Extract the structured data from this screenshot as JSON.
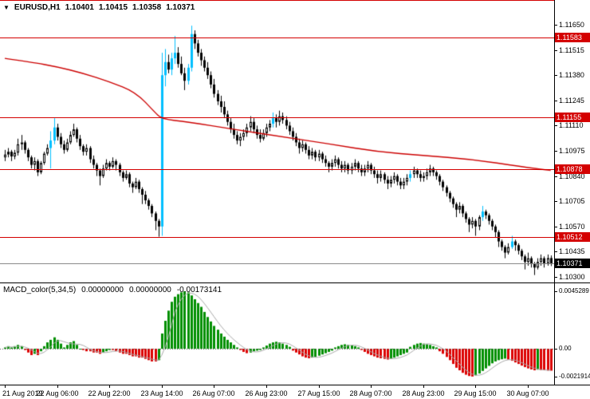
{
  "header": {
    "symbol": "EURUSD,H1",
    "open": "1.10401",
    "high": "1.10415",
    "low": "1.10358",
    "close": "1.10371"
  },
  "indicator_legend": {
    "name": "MACD_color(5,34,5)",
    "v1": "0.00000000",
    "v2": "0.00000000",
    "v3": "-0.00173141"
  },
  "icons": {
    "symbol_dropdown": "▼"
  },
  "colors": {
    "background": "#FFFFFF",
    "level_red": "#D40000",
    "ma_red": "#CC0000",
    "bull_cyan": "#00BFFF",
    "bull_white": "#FFFFFF",
    "bear_black": "#000000",
    "macd_green": "#008F00",
    "macd_red": "#DC0000",
    "signal_gray": "#A8A8A8",
    "current_price_gray": "#8A8A8A",
    "badge_black": "#000000"
  },
  "chart_data": {
    "type": "candlestick",
    "symbol": "EURUSD",
    "timeframe": "H1",
    "price_base": 1.1,
    "price_unit": 0.0001,
    "y_axis": {
      "labels": [
        "1.11650",
        "1.11515",
        "1.11380",
        "1.11245",
        "1.11110",
        "1.10975",
        "1.10840",
        "1.10705",
        "1.10570",
        "1.10435",
        "1.10300"
      ],
      "step": 0.00135
    },
    "horizontal_lines": [
      "1.11583",
      "1.11155",
      "1.10878",
      "1.10512"
    ],
    "current_price": "1.10371",
    "x_axis": {
      "labels": [
        {
          "text": "21 Aug 2019",
          "bar": 0
        },
        {
          "text": "22 Aug 06:00",
          "bar": 16
        },
        {
          "text": "22 Aug 22:00",
          "bar": 32
        },
        {
          "text": "23 Aug 14:00",
          "bar": 48
        },
        {
          "text": "26 Aug 07:00",
          "bar": 64
        },
        {
          "text": "26 Aug 23:00",
          "bar": 80
        },
        {
          "text": "27 Aug 15:00",
          "bar": 96
        },
        {
          "text": "28 Aug 07:00",
          "bar": 112
        },
        {
          "text": "28 Aug 23:00",
          "bar": 128
        },
        {
          "text": "29 Aug 15:00",
          "bar": 144
        },
        {
          "text": "30 Aug 07:00",
          "bar": 160
        }
      ]
    },
    "candles": [
      [
        94,
        98,
        92,
        95.5
      ],
      [
        95.5,
        99,
        94,
        97
      ],
      [
        97,
        98,
        92,
        94.5
      ],
      [
        94.5,
        98,
        93,
        96.5
      ],
      [
        96.5,
        104,
        95,
        101
      ],
      [
        101,
        106,
        98,
        102
      ],
      [
        102,
        103,
        96,
        98
      ],
      [
        98,
        99,
        92,
        94
      ],
      [
        94,
        95,
        88,
        90
      ],
      [
        90,
        94,
        87,
        92
      ],
      [
        92,
        93,
        84,
        86
      ],
      [
        86,
        92,
        85,
        91
      ],
      [
        91,
        97,
        90,
        96
      ],
      [
        96,
        101,
        95,
        99
      ],
      [
        99,
        108,
        88,
        103
      ],
      [
        103,
        115,
        101,
        110
      ],
      [
        110,
        112,
        103,
        105
      ],
      [
        105,
        107,
        99,
        101
      ],
      [
        101,
        103,
        96,
        98
      ],
      [
        98,
        104,
        97,
        102
      ],
      [
        102,
        108,
        101,
        106
      ],
      [
        106,
        112,
        105,
        109
      ],
      [
        109,
        110,
        102,
        104
      ],
      [
        104,
        106,
        98,
        100
      ],
      [
        100,
        101,
        95,
        97
      ],
      [
        97,
        101,
        95,
        99
      ],
      [
        99,
        100,
        91,
        93
      ],
      [
        93,
        95,
        88,
        90
      ],
      [
        90,
        91,
        84,
        87
      ],
      [
        87,
        88,
        79,
        84
      ],
      [
        84,
        90,
        83,
        88
      ],
      [
        88,
        93,
        87,
        91
      ],
      [
        91,
        92,
        87,
        89
      ],
      [
        89,
        94,
        88,
        92
      ],
      [
        92,
        93,
        87,
        90
      ],
      [
        90,
        91,
        84,
        86
      ],
      [
        86,
        87,
        81,
        83
      ],
      [
        83,
        87,
        82,
        85
      ],
      [
        85,
        86,
        78,
        80
      ],
      [
        80,
        81,
        75,
        78
      ],
      [
        78,
        83,
        77,
        81
      ],
      [
        81,
        82,
        75,
        77
      ],
      [
        77,
        78,
        69,
        74
      ],
      [
        74,
        76,
        69,
        71
      ],
      [
        71,
        72,
        66,
        68
      ],
      [
        68,
        69,
        62,
        64
      ],
      [
        64,
        65,
        55,
        60
      ],
      [
        60,
        61,
        51.5,
        57
      ],
      [
        57,
        150,
        52,
        138
      ],
      [
        138,
        152,
        132,
        145
      ],
      [
        145,
        149,
        139,
        141
      ],
      [
        141,
        150,
        138,
        147
      ],
      [
        147,
        159,
        144,
        150
      ],
      [
        150,
        153,
        142,
        144
      ],
      [
        144,
        148,
        138,
        139
      ],
      [
        139,
        142,
        130,
        135
      ],
      [
        135,
        144,
        133,
        142
      ],
      [
        142,
        164.5,
        140,
        160
      ],
      [
        160,
        162,
        152,
        155
      ],
      [
        155,
        157,
        148,
        150
      ],
      [
        150,
        152,
        143,
        146
      ],
      [
        146,
        148,
        140,
        142
      ],
      [
        142,
        145,
        136,
        138
      ],
      [
        138,
        140,
        131,
        133
      ],
      [
        133,
        136,
        126,
        128
      ],
      [
        128,
        130,
        122,
        124
      ],
      [
        124,
        127,
        118,
        121
      ],
      [
        121,
        124,
        115,
        117
      ],
      [
        117,
        119,
        111,
        113
      ],
      [
        113,
        115,
        107,
        109
      ],
      [
        109,
        112,
        104,
        106
      ],
      [
        106,
        108,
        101,
        103
      ],
      [
        103,
        107,
        100,
        105
      ],
      [
        105,
        109,
        103,
        107
      ],
      [
        107,
        112,
        105,
        110
      ],
      [
        110,
        116,
        108,
        113
      ],
      [
        113,
        115,
        107,
        109
      ],
      [
        109,
        111,
        104,
        106
      ],
      [
        106,
        109,
        102,
        104
      ],
      [
        104,
        109,
        103,
        107
      ],
      [
        107,
        112,
        105,
        110
      ],
      [
        110,
        114,
        108,
        112
      ],
      [
        112,
        118,
        110,
        115
      ],
      [
        115,
        117,
        110,
        113
      ],
      [
        113,
        119,
        111,
        116
      ],
      [
        116,
        118,
        112,
        114
      ],
      [
        114,
        116,
        109,
        111
      ],
      [
        111,
        113,
        106,
        108
      ],
      [
        108,
        110,
        103,
        105
      ],
      [
        105,
        107,
        100,
        102
      ],
      [
        102,
        104,
        96,
        99
      ],
      [
        99,
        103,
        97,
        101
      ],
      [
        101,
        102,
        96,
        98
      ],
      [
        98,
        100,
        93,
        95
      ],
      [
        95,
        99,
        93,
        97
      ],
      [
        97,
        98,
        92,
        94
      ],
      [
        94,
        98,
        92,
        96
      ],
      [
        96,
        97,
        91,
        93
      ],
      [
        93,
        95,
        89,
        91
      ],
      [
        91,
        92,
        86,
        89
      ],
      [
        89,
        93,
        87,
        91
      ],
      [
        91,
        95,
        89,
        93
      ],
      [
        93,
        94,
        88,
        90
      ],
      [
        90,
        92,
        86,
        88
      ],
      [
        88,
        92,
        86,
        90
      ],
      [
        90,
        91,
        85,
        87
      ],
      [
        87,
        91,
        85,
        89
      ],
      [
        89,
        93,
        87,
        91
      ],
      [
        91,
        92,
        86,
        88
      ],
      [
        88,
        90,
        84,
        86
      ],
      [
        86,
        90,
        84,
        88
      ],
      [
        88,
        92,
        86,
        90
      ],
      [
        90,
        91,
        85,
        87
      ],
      [
        87,
        89,
        83,
        85
      ],
      [
        85,
        87,
        80,
        83
      ],
      [
        83,
        87,
        81,
        85
      ],
      [
        85,
        86,
        80,
        82
      ],
      [
        82,
        84,
        77,
        80
      ],
      [
        80,
        84,
        78,
        82
      ],
      [
        82,
        86,
        80,
        84
      ],
      [
        84,
        85,
        79,
        81
      ],
      [
        81,
        83,
        77,
        79
      ],
      [
        79,
        83,
        77,
        81
      ],
      [
        81,
        85,
        79,
        83
      ],
      [
        83,
        87,
        81,
        85
      ],
      [
        85,
        89,
        83,
        87
      ],
      [
        87,
        88,
        83,
        85
      ],
      [
        85,
        87,
        81,
        83
      ],
      [
        83,
        86,
        81,
        84
      ],
      [
        84,
        88,
        82,
        86
      ],
      [
        86,
        90,
        84,
        88
      ],
      [
        88,
        89,
        84,
        86
      ],
      [
        86,
        87,
        82,
        84
      ],
      [
        84,
        85,
        79,
        81
      ],
      [
        81,
        82,
        76,
        78
      ],
      [
        78,
        79,
        73,
        75
      ],
      [
        75,
        76,
        70,
        72
      ],
      [
        72,
        73,
        67,
        69
      ],
      [
        69,
        70,
        62,
        66
      ],
      [
        66,
        70,
        64,
        68
      ],
      [
        68,
        69,
        62,
        64
      ],
      [
        64,
        65,
        59,
        61
      ],
      [
        61,
        62,
        54,
        58
      ],
      [
        58,
        62,
        56,
        60
      ],
      [
        60,
        61,
        52,
        57
      ],
      [
        57,
        63,
        55,
        62
      ],
      [
        62,
        68,
        60,
        65
      ],
      [
        65,
        66,
        61,
        63
      ],
      [
        63,
        64,
        58,
        60
      ],
      [
        60,
        61,
        55,
        57
      ],
      [
        57,
        58,
        51,
        54
      ],
      [
        54,
        55,
        46,
        49
      ],
      [
        49,
        50,
        44,
        46
      ],
      [
        46,
        47,
        40,
        43
      ],
      [
        43,
        48,
        42,
        46
      ],
      [
        46,
        52,
        45,
        49
      ],
      [
        49,
        50,
        44,
        47
      ],
      [
        47,
        48,
        42,
        44
      ],
      [
        44,
        45,
        39,
        41
      ],
      [
        41,
        42,
        34,
        38
      ],
      [
        38,
        43,
        36,
        40
      ],
      [
        40,
        41,
        35,
        37
      ],
      [
        37,
        38,
        31,
        35
      ],
      [
        35,
        40,
        34,
        38
      ],
      [
        38,
        42,
        36,
        40
      ],
      [
        40,
        41,
        35,
        37
      ],
      [
        37,
        42,
        36,
        40.1
      ],
      [
        40.1,
        41.5,
        35.8,
        37.1
      ]
    ],
    "strong_bull_bars": [
      14,
      15,
      48,
      49,
      51,
      52,
      56,
      57,
      82,
      124,
      146,
      155
    ],
    "ma_line": {
      "description": "descending red moving average",
      "anchors": [
        [
          0,
          147
        ],
        [
          8,
          145
        ],
        [
          16,
          142.5
        ],
        [
          24,
          139
        ],
        [
          32,
          134.5
        ],
        [
          40,
          129
        ],
        [
          46,
          118
        ],
        [
          48,
          114.5
        ],
        [
          56,
          113
        ],
        [
          70,
          109
        ],
        [
          85,
          105
        ],
        [
          100,
          101
        ],
        [
          114,
          97
        ],
        [
          128,
          95
        ],
        [
          143,
          93
        ],
        [
          158,
          89
        ],
        [
          167,
          87
        ]
      ]
    },
    "indicator": {
      "type": "macd_histogram",
      "name": "MACD_color(5,34,5)",
      "unit": 0.0001,
      "axis_labels": [
        "0.0045289",
        "0.00",
        "-0.0021914"
      ],
      "values": [
        1,
        2,
        1,
        2,
        3,
        2,
        -1,
        -3,
        -5,
        -4,
        -5,
        -2,
        2,
        5,
        7,
        9,
        7,
        4,
        1,
        3,
        5,
        6,
        3,
        0,
        -1,
        -2,
        -2,
        -3,
        -3,
        -4,
        -3,
        -2,
        -1,
        -1,
        -2,
        -3,
        -4,
        -4,
        -5,
        -6,
        -6,
        -7,
        -7,
        -8,
        -9,
        -10,
        -10,
        -9,
        12,
        22,
        30,
        37,
        41,
        43,
        44.5,
        45.3,
        44.5,
        42,
        39,
        36,
        33,
        29,
        25,
        21.5,
        18,
        15,
        12,
        9.5,
        7,
        5,
        3,
        1,
        -1,
        -2.5,
        -3.5,
        -3,
        -2,
        -1.5,
        -1,
        1,
        2.5,
        4,
        5,
        5.5,
        5,
        4,
        3,
        1.5,
        -1.5,
        -3,
        -4.5,
        -6,
        -7,
        -7.5,
        -7,
        -6.5,
        -5.5,
        -4.5,
        -3.5,
        -2.5,
        -1.5,
        1,
        2,
        3,
        3.5,
        3,
        2.5,
        2,
        1,
        -1,
        -2.5,
        -4,
        -5,
        -6,
        -7,
        -7.5,
        -8,
        -8.5,
        -8,
        -7,
        -6,
        -5,
        -4,
        -3,
        1.5,
        3,
        4,
        4.5,
        4,
        3.5,
        3,
        2,
        1,
        -2,
        -4,
        -6.5,
        -9,
        -12,
        -15,
        -17,
        -19,
        -20.5,
        -21.5,
        -21.9,
        -21,
        -19.5,
        -17.5,
        -15.5,
        -13.5,
        -11.5,
        -10,
        -9,
        -8.3,
        -7.8,
        -8.5,
        -9.5,
        -10.8,
        -12,
        -13.3,
        -14.5,
        -15.5,
        -16.3,
        -17,
        -16.5,
        -16.8,
        -17,
        -17.2,
        -17.3
      ]
    }
  }
}
